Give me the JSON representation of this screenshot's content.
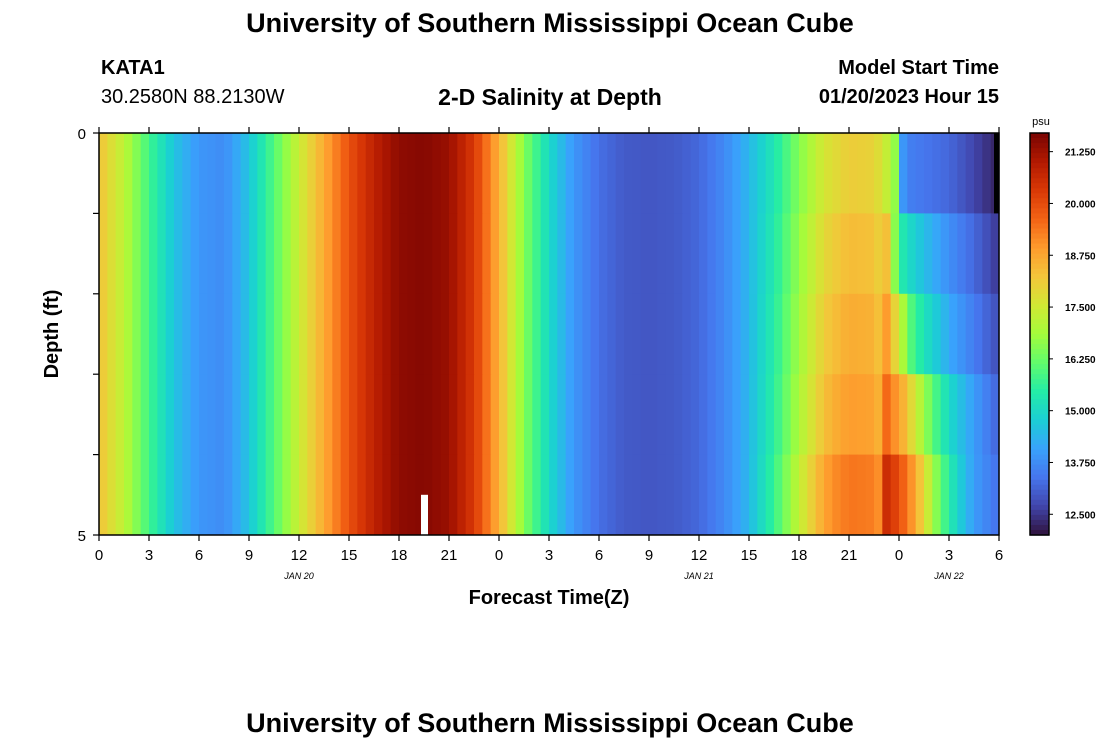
{
  "header": {
    "title": "University of Southern Mississippi Ocean Cube",
    "station": "KATA1",
    "coordinates": "30.2580N  88.2130W",
    "plot_title": "2-D Salinity at Depth",
    "model_start_label": "Model Start Time",
    "model_start_value": "01/20/2023 Hour 15"
  },
  "footer": {
    "title": "University of Southern Mississippi Ocean Cube"
  },
  "chart_data": {
    "type": "heatmap",
    "title": "2-D Salinity at Depth",
    "xlabel": "Forecast Time(Z)",
    "ylabel": "Depth (ft)",
    "x_ticks": [
      "0",
      "3",
      "6",
      "9",
      "12",
      "15",
      "18",
      "21",
      "0",
      "3",
      "6",
      "9",
      "12",
      "15",
      "18",
      "21",
      "0",
      "3",
      "6"
    ],
    "x_range_hours": [
      0,
      54
    ],
    "day_labels": [
      {
        "label": "JAN 20",
        "hour": 12
      },
      {
        "label": "JAN 21",
        "hour": 36
      },
      {
        "label": "JAN 22",
        "hour": 51
      }
    ],
    "y_range_ft": [
      0,
      5
    ],
    "y_tick_labels": [
      "0",
      "5"
    ],
    "y_minor_ticks_ft": [
      1,
      2,
      3,
      4
    ],
    "colorbar": {
      "unit": "psu",
      "min": 12.0,
      "max": 21.7,
      "tick_labels": [
        "12.500",
        "13.750",
        "15.000",
        "16.250",
        "17.500",
        "18.750",
        "20.000",
        "21.250"
      ]
    },
    "marker_hour": 19.5,
    "time_columns": 108,
    "depth_layers": 5,
    "base_keyframes": [
      [
        0,
        18.3
      ],
      [
        1.5,
        17.2
      ],
      [
        3,
        15.8
      ],
      [
        4.5,
        14.6
      ],
      [
        6,
        13.9
      ],
      [
        7.5,
        13.75
      ],
      [
        9,
        14.6
      ],
      [
        10.5,
        16.0
      ],
      [
        12,
        17.4
      ],
      [
        13.5,
        18.7
      ],
      [
        15,
        19.9
      ],
      [
        16.5,
        20.8
      ],
      [
        18,
        21.45
      ],
      [
        19.5,
        21.55
      ],
      [
        21,
        21.3
      ],
      [
        22.5,
        20.3
      ],
      [
        24,
        18.6
      ],
      [
        25.5,
        16.5
      ],
      [
        27,
        15.0
      ],
      [
        28.5,
        13.9
      ],
      [
        30,
        13.3
      ],
      [
        31.5,
        13.0
      ],
      [
        33,
        12.95
      ],
      [
        34.5,
        13.0
      ],
      [
        36,
        13.2
      ],
      [
        37.5,
        13.7
      ],
      [
        39,
        14.4
      ],
      [
        40.5,
        15.3
      ],
      [
        42,
        16.5
      ],
      [
        43.5,
        17.6
      ],
      [
        45,
        18.1
      ],
      [
        46.5,
        18.0
      ],
      [
        47.2,
        17.4
      ]
    ],
    "layer_tails": [
      [
        [
          47.2,
          17.4
        ],
        [
          47.8,
          16.6
        ],
        [
          48.3,
          13.6
        ],
        [
          49.5,
          13.4
        ],
        [
          51,
          13.2
        ],
        [
          52.5,
          12.7
        ],
        [
          54,
          12.2
        ]
      ],
      [
        [
          47.2,
          18.5
        ],
        [
          47.8,
          16.4
        ],
        [
          48.3,
          15.2
        ],
        [
          49.5,
          14.5
        ],
        [
          51,
          13.8
        ],
        [
          52.5,
          13.2
        ],
        [
          54,
          12.5
        ]
      ],
      [
        [
          47.2,
          19.0
        ],
        [
          48,
          17.5
        ],
        [
          48.7,
          16.0
        ],
        [
          49.5,
          15.2
        ],
        [
          51,
          14.2
        ],
        [
          52.5,
          13.5
        ],
        [
          54,
          12.8
        ]
      ],
      [
        [
          47.2,
          19.6
        ],
        [
          48.3,
          18.5
        ],
        [
          49.2,
          17.2
        ],
        [
          50,
          16.1
        ],
        [
          51,
          15.0
        ],
        [
          52.5,
          14.0
        ],
        [
          54,
          13.1
        ]
      ],
      [
        [
          47.2,
          20.6
        ],
        [
          48,
          20.0
        ],
        [
          49,
          18.7
        ],
        [
          49.8,
          17.3
        ],
        [
          50.5,
          16.1
        ],
        [
          51.5,
          14.9
        ],
        [
          52.5,
          14.0
        ],
        [
          54,
          13.3
        ]
      ]
    ],
    "layer_offsets": [
      0,
      0.3,
      0.55,
      0.8,
      1.3
    ],
    "colormap_stops": [
      "#30123b",
      "#4145ab",
      "#4675ed",
      "#39a2fc",
      "#1bcfd4",
      "#24eca6",
      "#61fc6c",
      "#a4fc3b",
      "#d1e834",
      "#f3c63a",
      "#fe9b2d",
      "#f36315",
      "#d93806",
      "#b11901",
      "#7a0402"
    ],
    "colors": {
      "frame": "#000000",
      "marker": "#ffffff",
      "missing": "#000000"
    }
  }
}
